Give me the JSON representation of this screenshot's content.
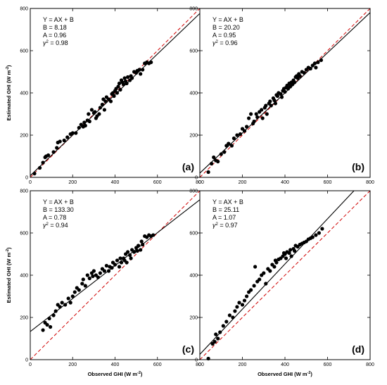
{
  "chart_data": [
    {
      "type": "scatter",
      "panel_label": "(a)",
      "equation": "Y = AX + B",
      "B_text": "B = 8.18",
      "A_text": "A = 0.96",
      "g_text": "2 = 0.98",
      "fit": {
        "A": 0.96,
        "B": 8.18
      },
      "xlim": [
        0,
        800
      ],
      "ylim": [
        0,
        800
      ],
      "xticks": [
        "0",
        "200",
        "400",
        "600",
        "800"
      ],
      "yticks": [
        "0",
        "200",
        "400",
        "600",
        "800"
      ],
      "xlabel": "",
      "ylabel": "Estimated GHI (W m-2)",
      "points": [
        [
          20,
          18
        ],
        [
          45,
          45
        ],
        [
          60,
          70
        ],
        [
          70,
          95
        ],
        [
          75,
          100
        ],
        [
          85,
          105
        ],
        [
          110,
          120
        ],
        [
          125,
          140
        ],
        [
          130,
          165
        ],
        [
          140,
          170
        ],
        [
          160,
          175
        ],
        [
          175,
          190
        ],
        [
          190,
          205
        ],
        [
          200,
          210
        ],
        [
          215,
          210
        ],
        [
          230,
          235
        ],
        [
          240,
          250
        ],
        [
          250,
          240
        ],
        [
          255,
          260
        ],
        [
          260,
          245
        ],
        [
          270,
          270
        ],
        [
          275,
          300
        ],
        [
          280,
          265
        ],
        [
          290,
          320
        ],
        [
          300,
          305
        ],
        [
          305,
          310
        ],
        [
          310,
          280
        ],
        [
          315,
          290
        ],
        [
          325,
          300
        ],
        [
          330,
          330
        ],
        [
          340,
          345
        ],
        [
          345,
          370
        ],
        [
          350,
          320
        ],
        [
          355,
          360
        ],
        [
          360,
          380
        ],
        [
          370,
          370
        ],
        [
          380,
          360
        ],
        [
          385,
          395
        ],
        [
          390,
          400
        ],
        [
          395,
          385
        ],
        [
          400,
          410
        ],
        [
          405,
          420
        ],
        [
          410,
          400
        ],
        [
          415,
          430
        ],
        [
          420,
          445
        ],
        [
          425,
          415
        ],
        [
          430,
          460
        ],
        [
          435,
          450
        ],
        [
          440,
          440
        ],
        [
          445,
          470
        ],
        [
          450,
          455
        ],
        [
          455,
          445
        ],
        [
          460,
          475
        ],
        [
          470,
          460
        ],
        [
          475,
          480
        ],
        [
          480,
          470
        ],
        [
          490,
          500
        ],
        [
          500,
          495
        ],
        [
          505,
          505
        ],
        [
          515,
          510
        ],
        [
          520,
          490
        ],
        [
          530,
          510
        ],
        [
          540,
          540
        ],
        [
          550,
          545
        ],
        [
          560,
          540
        ],
        [
          570,
          545
        ]
      ]
    },
    {
      "type": "scatter",
      "panel_label": "(b)",
      "equation": "Y = AX + B",
      "B_text": "B = 20.20",
      "A_text": "A = 0.95",
      "g_text": "2 = 0.96",
      "fit": {
        "A": 0.95,
        "B": 20.2
      },
      "xlim": [
        0,
        800
      ],
      "ylim": [
        0,
        800
      ],
      "xticks": [
        "0",
        "200",
        "400",
        "600",
        "800"
      ],
      "yticks": [
        "0",
        "200",
        "400",
        "600",
        "800"
      ],
      "xlabel": "",
      "ylabel": "",
      "points": [
        [
          40,
          25
        ],
        [
          55,
          65
        ],
        [
          65,
          95
        ],
        [
          75,
          80
        ],
        [
          85,
          75
        ],
        [
          100,
          110
        ],
        [
          115,
          120
        ],
        [
          125,
          150
        ],
        [
          135,
          160
        ],
        [
          150,
          150
        ],
        [
          160,
          185
        ],
        [
          175,
          200
        ],
        [
          190,
          205
        ],
        [
          200,
          230
        ],
        [
          210,
          220
        ],
        [
          220,
          240
        ],
        [
          230,
          280
        ],
        [
          240,
          300
        ],
        [
          250,
          255
        ],
        [
          255,
          265
        ],
        [
          265,
          300
        ],
        [
          270,
          285
        ],
        [
          280,
          310
        ],
        [
          290,
          320
        ],
        [
          295,
          280
        ],
        [
          305,
          330
        ],
        [
          310,
          340
        ],
        [
          315,
          300
        ],
        [
          325,
          350
        ],
        [
          330,
          360
        ],
        [
          335,
          340
        ],
        [
          345,
          375
        ],
        [
          350,
          365
        ],
        [
          355,
          350
        ],
        [
          360,
          390
        ],
        [
          365,
          385
        ],
        [
          370,
          400
        ],
        [
          380,
          395
        ],
        [
          385,
          380
        ],
        [
          390,
          410
        ],
        [
          395,
          420
        ],
        [
          400,
          405
        ],
        [
          405,
          425
        ],
        [
          410,
          435
        ],
        [
          415,
          420
        ],
        [
          420,
          445
        ],
        [
          425,
          430
        ],
        [
          430,
          450
        ],
        [
          435,
          440
        ],
        [
          440,
          460
        ],
        [
          445,
          450
        ],
        [
          450,
          475
        ],
        [
          455,
          480
        ],
        [
          460,
          470
        ],
        [
          465,
          490
        ],
        [
          470,
          480
        ],
        [
          480,
          500
        ],
        [
          490,
          495
        ],
        [
          500,
          510
        ],
        [
          510,
          520
        ],
        [
          520,
          515
        ],
        [
          530,
          530
        ],
        [
          540,
          540
        ],
        [
          545,
          520
        ],
        [
          555,
          545
        ],
        [
          570,
          555
        ]
      ]
    },
    {
      "type": "scatter",
      "panel_label": "(c)",
      "equation": "Y = AX + B",
      "B_text": "B = 133.30",
      "A_text": "A = 0.78",
      "g_text": "2 = 0.94",
      "fit": {
        "A": 0.78,
        "B": 133.3
      },
      "xlim": [
        0,
        800
      ],
      "ylim": [
        0,
        800
      ],
      "xticks": [
        "0",
        "200",
        "400",
        "600",
        "800"
      ],
      "yticks": [
        "0",
        "200",
        "400",
        "600",
        "800"
      ],
      "xlabel": "Observed GHI (W m-2)",
      "ylabel": "Estimated GHI (W m-2)",
      "points": [
        [
          60,
          140
        ],
        [
          70,
          175
        ],
        [
          80,
          165
        ],
        [
          90,
          195
        ],
        [
          95,
          155
        ],
        [
          110,
          210
        ],
        [
          120,
          230
        ],
        [
          130,
          260
        ],
        [
          140,
          250
        ],
        [
          150,
          270
        ],
        [
          165,
          260
        ],
        [
          180,
          290
        ],
        [
          190,
          270
        ],
        [
          200,
          300
        ],
        [
          210,
          320
        ],
        [
          220,
          340
        ],
        [
          230,
          330
        ],
        [
          245,
          360
        ],
        [
          250,
          380
        ],
        [
          260,
          350
        ],
        [
          270,
          400
        ],
        [
          280,
          385
        ],
        [
          290,
          410
        ],
        [
          295,
          395
        ],
        [
          300,
          420
        ],
        [
          310,
          400
        ],
        [
          320,
          390
        ],
        [
          330,
          410
        ],
        [
          340,
          430
        ],
        [
          350,
          420
        ],
        [
          360,
          445
        ],
        [
          370,
          420
        ],
        [
          375,
          440
        ],
        [
          385,
          435
        ],
        [
          390,
          460
        ],
        [
          400,
          450
        ],
        [
          410,
          470
        ],
        [
          420,
          440
        ],
        [
          425,
          480
        ],
        [
          430,
          460
        ],
        [
          440,
          480
        ],
        [
          445,
          470
        ],
        [
          450,
          500
        ],
        [
          455,
          460
        ],
        [
          460,
          510
        ],
        [
          470,
          495
        ],
        [
          475,
          480
        ],
        [
          480,
          520
        ],
        [
          490,
          510
        ],
        [
          500,
          530
        ],
        [
          505,
          515
        ],
        [
          510,
          540
        ],
        [
          520,
          520
        ],
        [
          525,
          560
        ],
        [
          530,
          545
        ],
        [
          540,
          585
        ],
        [
          550,
          580
        ],
        [
          560,
          590
        ],
        [
          570,
          585
        ],
        [
          580,
          590
        ]
      ]
    },
    {
      "type": "scatter",
      "panel_label": "(d)",
      "equation": "Y = AX + B",
      "B_text": "B = 25.11",
      "A_text": "A = 1.07",
      "g_text": "2 = 0.97",
      "fit": {
        "A": 1.07,
        "B": 25.11
      },
      "xlim": [
        0,
        800
      ],
      "ylim": [
        0,
        800
      ],
      "xticks": [
        "0",
        "200",
        "400",
        "600",
        "800"
      ],
      "yticks": [
        "0",
        "200",
        "400",
        "600",
        "800"
      ],
      "xlabel": "Observed GHI (W m-2)",
      "ylabel": "",
      "points": [
        [
          40,
          5
        ],
        [
          60,
          75
        ],
        [
          70,
          85
        ],
        [
          75,
          120
        ],
        [
          85,
          100
        ],
        [
          95,
          130
        ],
        [
          110,
          160
        ],
        [
          125,
          180
        ],
        [
          140,
          210
        ],
        [
          155,
          200
        ],
        [
          165,
          230
        ],
        [
          175,
          250
        ],
        [
          185,
          270
        ],
        [
          200,
          260
        ],
        [
          210,
          280
        ],
        [
          220,
          300
        ],
        [
          230,
          320
        ],
        [
          240,
          330
        ],
        [
          255,
          350
        ],
        [
          260,
          440
        ],
        [
          270,
          370
        ],
        [
          280,
          380
        ],
        [
          290,
          400
        ],
        [
          300,
          410
        ],
        [
          310,
          360
        ],
        [
          320,
          430
        ],
        [
          330,
          420
        ],
        [
          340,
          450
        ],
        [
          350,
          440
        ],
        [
          355,
          470
        ],
        [
          360,
          460
        ],
        [
          370,
          475
        ],
        [
          380,
          480
        ],
        [
          390,
          490
        ],
        [
          395,
          505
        ],
        [
          400,
          500
        ],
        [
          405,
          480
        ],
        [
          410,
          510
        ],
        [
          420,
          505
        ],
        [
          425,
          520
        ],
        [
          430,
          490
        ],
        [
          440,
          525
        ],
        [
          445,
          515
        ],
        [
          450,
          540
        ],
        [
          460,
          535
        ],
        [
          470,
          545
        ],
        [
          480,
          550
        ],
        [
          490,
          555
        ],
        [
          500,
          560
        ],
        [
          510,
          570
        ],
        [
          520,
          575
        ],
        [
          530,
          580
        ],
        [
          545,
          590
        ],
        [
          560,
          600
        ],
        [
          575,
          620
        ]
      ]
    }
  ]
}
